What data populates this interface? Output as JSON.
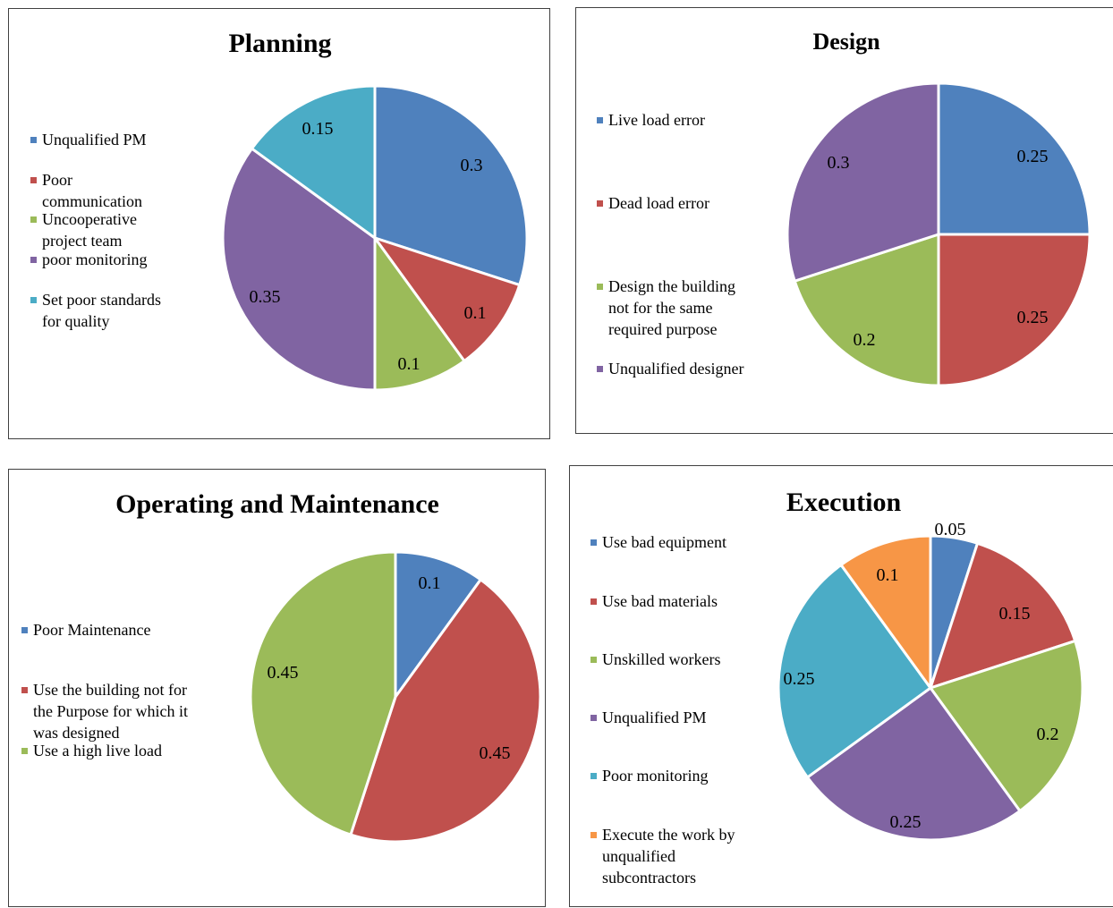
{
  "chart_data": [
    {
      "type": "pie",
      "title": "Planning",
      "categories": [
        "Unqualified PM",
        "Poor communication",
        "Uncooperative project team",
        "poor monitoring",
        "Set poor standards for quality"
      ],
      "values": [
        0.3,
        0.1,
        0.1,
        0.35,
        0.15
      ],
      "data_labels": [
        "0.3",
        "0.1",
        "0.1",
        "0.35",
        "0.15"
      ],
      "legend_lines": [
        [
          "Unqualified PM"
        ],
        [
          "Poor",
          "communication"
        ],
        [
          "Uncooperative",
          "project team"
        ],
        [
          "poor monitoring"
        ],
        [
          "Set poor standards",
          "for quality"
        ]
      ],
      "legend_position": "left",
      "colors": [
        "#4F81BD",
        "#C0504D",
        "#9BBB59",
        "#8064A2",
        "#4BACC6"
      ]
    },
    {
      "type": "pie",
      "title": "Design",
      "categories": [
        "Live load error",
        "Dead load error",
        "Design the building not for the same required purpose",
        "Unqualified designer"
      ],
      "values": [
        0.25,
        0.25,
        0.2,
        0.3
      ],
      "data_labels": [
        "0.25",
        "0.25",
        "0.2",
        "0.3"
      ],
      "legend_lines": [
        [
          "Live load error"
        ],
        [
          "Dead load error"
        ],
        [
          "Design the building",
          "not for the same",
          "required purpose"
        ],
        [
          "Unqualified designer"
        ]
      ],
      "legend_position": "left",
      "colors": [
        "#4F81BD",
        "#C0504D",
        "#9BBB59",
        "#8064A2"
      ]
    },
    {
      "type": "pie",
      "title": "Operating and Maintenance",
      "categories": [
        "Poor Maintenance",
        "Use the building not for the Purpose for which it was designed",
        "Use a high live load"
      ],
      "values": [
        0.1,
        0.45,
        0.45
      ],
      "data_labels": [
        "0.1",
        "0.45",
        "0.45"
      ],
      "legend_lines": [
        [
          "Poor Maintenance"
        ],
        [
          "Use the building not for",
          "the  Purpose for which it",
          "was designed"
        ],
        [
          "Use a high live load"
        ]
      ],
      "legend_position": "left",
      "colors": [
        "#4F81BD",
        "#C0504D",
        "#9BBB59"
      ]
    },
    {
      "type": "pie",
      "title": "Execution",
      "categories": [
        "Use bad equipment",
        "Use bad materials",
        "Unskilled workers",
        "Unqualified PM",
        "Poor monitoring",
        "Execute the work by unqualified subcontractors"
      ],
      "values": [
        0.05,
        0.15,
        0.2,
        0.25,
        0.25,
        0.1
      ],
      "data_labels": [
        "0.05",
        "0.15",
        "0.2",
        "0.25",
        "0.25",
        "0.1"
      ],
      "legend_lines": [
        [
          "Use bad equipment"
        ],
        [
          "Use bad materials"
        ],
        [
          "Unskilled workers"
        ],
        [
          "Unqualified PM"
        ],
        [
          "Poor monitoring"
        ],
        [
          "Execute the work by",
          "unqualified",
          "subcontractors"
        ]
      ],
      "legend_position": "left",
      "colors": [
        "#4F81BD",
        "#C0504D",
        "#9BBB59",
        "#8064A2",
        "#4BACC6",
        "#F79646"
      ]
    }
  ]
}
